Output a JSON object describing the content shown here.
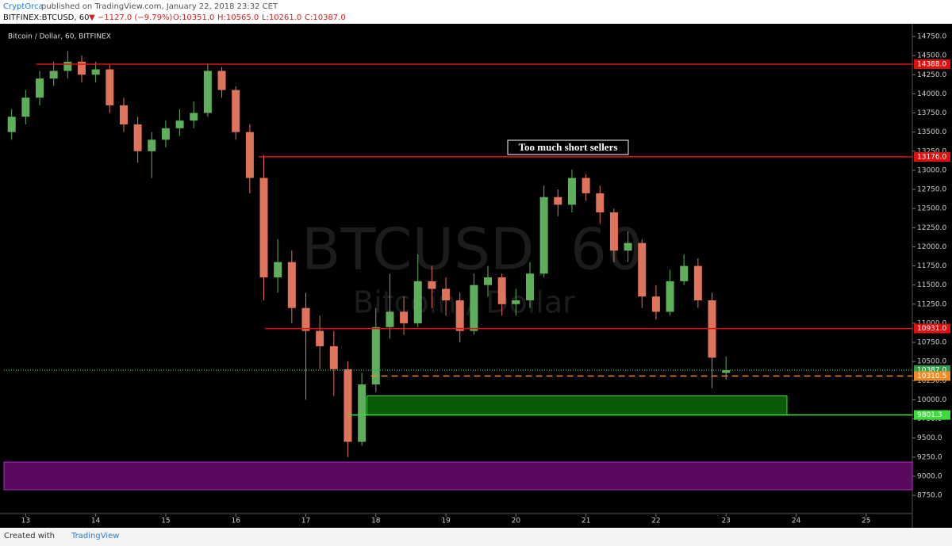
{
  "header": {
    "author": "CryptOrca",
    "published": "published on TradingView.com, January 22, 2018 23:32 CET",
    "symbol": "BITFINEX:BTCUSD, 60",
    "change": "▼ −1127.0 (−9.79%)",
    "open": "O:10351.0",
    "high": "H:10565.0",
    "low": "L:10261.0",
    "close": "C:10387.0"
  },
  "footer": {
    "created": "Created with",
    "brand": "TradingView"
  },
  "chart_data": {
    "type": "candlestick",
    "title": "Bitcoin / Dollar, 60, BITFINEX",
    "watermark": "BTCUSD, 60",
    "watermark_sub": "Bitcoin / Dollar",
    "annotation": "Too much short sellers",
    "up_color": "#5fae5c",
    "down_color": "#e0735c",
    "x": [
      12.8,
      13.0,
      13.2,
      13.4,
      13.6,
      13.8,
      14.0,
      14.2,
      14.4,
      14.6,
      14.8,
      15.0,
      15.2,
      15.4,
      15.6,
      15.8,
      16.0,
      16.2,
      16.4,
      16.6,
      16.8,
      17.0,
      17.2,
      17.4,
      17.6,
      17.8,
      18.0,
      18.2,
      18.4,
      18.6,
      18.8,
      19.0,
      19.2,
      19.4,
      19.6,
      19.8,
      20.0,
      20.2,
      20.4,
      20.6,
      20.8,
      21.0,
      21.2,
      21.4,
      21.6,
      21.8,
      22.0,
      22.2,
      22.4,
      22.6,
      22.8,
      23.0
    ],
    "open": [
      13500,
      13700,
      13950,
      14200,
      14300,
      14420,
      14250,
      14320,
      13850,
      13600,
      13250,
      13400,
      13550,
      13650,
      13750,
      14300,
      14050,
      13500,
      12900,
      11600,
      11800,
      11200,
      10900,
      10700,
      10400,
      9450,
      10200,
      10950,
      11150,
      11000,
      11550,
      11450,
      11300,
      10900,
      11500,
      11600,
      11250,
      11300,
      11650,
      12650,
      12550,
      12900,
      12700,
      12450,
      11950,
      12050,
      11350,
      11150,
      11550,
      11750,
      11300,
      10351
    ],
    "high": [
      13800,
      14050,
      14300,
      14420,
      14560,
      14500,
      14420,
      14380,
      13950,
      13700,
      13500,
      13650,
      13800,
      13900,
      14400,
      14350,
      14100,
      13600,
      13200,
      12100,
      11950,
      11400,
      11100,
      10900,
      10500,
      10350,
      11200,
      11650,
      11350,
      11900,
      11750,
      11600,
      11400,
      11650,
      11750,
      11650,
      11450,
      11800,
      12800,
      12750,
      13010,
      12950,
      12800,
      12500,
      12200,
      12100,
      11500,
      11700,
      11900,
      11850,
      11400,
      10565
    ],
    "low": [
      13400,
      13600,
      13850,
      14100,
      14200,
      14150,
      14150,
      13750,
      13500,
      13100,
      12900,
      13300,
      13450,
      13550,
      13700,
      13950,
      13400,
      12700,
      11300,
      11400,
      11000,
      10000,
      10400,
      10050,
      9250,
      9400,
      10100,
      10800,
      10850,
      10950,
      11200,
      11100,
      10750,
      10850,
      11350,
      11100,
      11100,
      11200,
      11600,
      12400,
      12450,
      12600,
      12300,
      11800,
      11800,
      11200,
      11050,
      11100,
      11500,
      11200,
      10150,
      10261
    ],
    "close": [
      13700,
      13950,
      14200,
      14300,
      14420,
      14250,
      14320,
      13850,
      13600,
      13250,
      13400,
      13550,
      13650,
      13750,
      14300,
      14050,
      13500,
      12900,
      11600,
      11800,
      11200,
      10900,
      10700,
      10400,
      9450,
      10200,
      10950,
      11150,
      11000,
      11550,
      11450,
      11300,
      10900,
      11500,
      11600,
      11250,
      11300,
      11650,
      12650,
      12550,
      12900,
      12700,
      12450,
      11950,
      12050,
      11350,
      11150,
      11550,
      11750,
      11300,
      10550,
      10387
    ],
    "levels": [
      {
        "value": 14388,
        "label": "14388.0",
        "color": "#e01010",
        "from": 13.15
      },
      {
        "value": 13176,
        "label": "13176.0",
        "color": "#e01010",
        "from": 16.33
      },
      {
        "value": 10931,
        "label": "10931.0",
        "color": "#e01010",
        "from": 16.42
      },
      {
        "value": 10387,
        "label": "10387.0",
        "color": "#2e9e4a",
        "dash": "1,2"
      },
      {
        "value": 10310.5,
        "label": "10310.5",
        "color": "#f08a24",
        "from": 17.93,
        "dash": "8,5"
      },
      {
        "value": 9801.3,
        "label": "9801.3",
        "color": "#3ddc3d",
        "from": 17.6
      }
    ],
    "zones": [
      {
        "low": 9801.3,
        "high": 10050,
        "from": 17.87,
        "to": 23.87,
        "color": "#0a5a0a",
        "border": "#3ddc3d"
      },
      {
        "low": 8824,
        "high": 9186,
        "color": "#5a0a5e",
        "border": "#b030c0"
      }
    ],
    "xlim": [
      12.69,
      25.66
    ],
    "xticks": [
      13,
      14,
      15,
      16,
      17,
      18,
      19,
      20,
      21,
      22,
      23,
      24,
      25
    ],
    "ylim": [
      8492,
      14916
    ],
    "yticks": [
      {
        "value": 8750,
        "label": "8750.0"
      },
      {
        "value": 9000,
        "label": "9000.0"
      },
      {
        "value": 9250,
        "label": "9250.0"
      },
      {
        "value": 9500,
        "label": "9500.0"
      },
      {
        "value": 9750,
        "label": "9750.0"
      },
      {
        "value": 10000,
        "label": "10000.0"
      },
      {
        "value": 10250,
        "label": "10250.0"
      },
      {
        "value": 10500,
        "label": "10500.0"
      },
      {
        "value": 10750,
        "label": "10750.0"
      },
      {
        "value": 11000,
        "label": "11000.0"
      },
      {
        "value": 11250,
        "label": "11250.0"
      },
      {
        "value": 11500,
        "label": "11500.0"
      },
      {
        "value": 11750,
        "label": "11750.0"
      },
      {
        "value": 12000,
        "label": "12000.0"
      },
      {
        "value": 12250,
        "label": "12250.0"
      },
      {
        "value": 12500,
        "label": "12500.0"
      },
      {
        "value": 12750,
        "label": "12750.0"
      },
      {
        "value": 13000,
        "label": "13000.0"
      },
      {
        "value": 13250,
        "label": "13250.0"
      },
      {
        "value": 13500,
        "label": "13500.0"
      },
      {
        "value": 13750,
        "label": "13750.0"
      },
      {
        "value": 14000,
        "label": "14000.0"
      },
      {
        "value": 14250,
        "label": "14250.0"
      },
      {
        "value": 14500,
        "label": "14500.0"
      },
      {
        "value": 14750,
        "label": "14750.0"
      }
    ]
  }
}
